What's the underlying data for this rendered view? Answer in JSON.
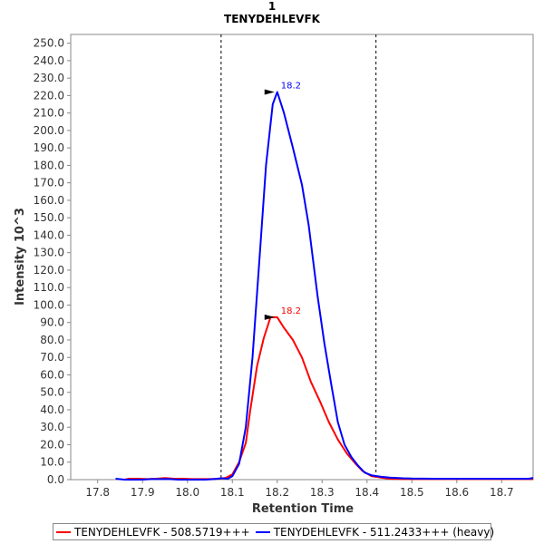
{
  "chart_data": {
    "type": "line",
    "title": "1",
    "subtitle": "TENYDEHLEVFK",
    "xlabel": "Retention Time",
    "ylabel": "Intensity 10^3",
    "xlim": [
      17.74,
      18.77
    ],
    "ylim": [
      0,
      255
    ],
    "x_ticks": [
      "17.8",
      "17.9",
      "18.0",
      "18.1",
      "18.2",
      "18.3",
      "18.4",
      "18.5",
      "18.6",
      "18.7"
    ],
    "y_ticks": [
      "0.0",
      "10.0",
      "20.0",
      "30.0",
      "40.0",
      "50.0",
      "60.0",
      "70.0",
      "80.0",
      "90.0",
      "100.0",
      "110.0",
      "120.0",
      "130.0",
      "140.0",
      "150.0",
      "160.0",
      "170.0",
      "180.0",
      "190.0",
      "200.0",
      "210.0",
      "220.0",
      "230.0",
      "240.0",
      "250.0"
    ],
    "grid": false,
    "legend": "bottom",
    "integration_bounds": [
      18.075,
      18.42
    ],
    "series": [
      {
        "name": "TENYDEHLEVFK - 508.5719+++",
        "color": "#ff0000",
        "peak_label": "18.2",
        "peak": [
          18.2,
          93
        ],
        "x": [
          17.86,
          17.87,
          17.89,
          17.91,
          17.93,
          17.95,
          17.97,
          17.99,
          18.01,
          18.03,
          18.05,
          18.07,
          18.085,
          18.1,
          18.115,
          18.13,
          18.14,
          18.155,
          18.17,
          18.185,
          18.2,
          18.215,
          18.235,
          18.255,
          18.275,
          18.295,
          18.315,
          18.335,
          18.355,
          18.375,
          18.39,
          18.41,
          18.43,
          18.45,
          18.48,
          18.5,
          18.55,
          18.6,
          18.65,
          18.7,
          18.77
        ],
        "y": [
          0,
          0.5,
          0.5,
          0.3,
          0.5,
          0.9,
          0.5,
          0.5,
          0.3,
          0.3,
          0.3,
          0.5,
          1,
          3,
          10,
          21,
          40,
          65,
          81,
          93,
          93,
          87,
          80,
          70,
          56,
          45,
          33,
          23,
          15,
          9,
          5,
          2,
          1.2,
          0.5,
          0.3,
          0.3,
          0.3,
          0.3,
          0.3,
          0.3,
          0.3
        ]
      },
      {
        "name": "TENYDEHLEVFK - 511.2433+++ (heavy)",
        "color": "#0000ff",
        "peak_label": "18.2",
        "peak": [
          18.2,
          222
        ],
        "x": [
          17.84,
          17.86,
          17.88,
          17.9,
          17.92,
          17.94,
          17.96,
          17.98,
          18.0,
          18.02,
          18.04,
          18.06,
          18.075,
          18.09,
          18.1,
          18.115,
          18.13,
          18.145,
          18.16,
          18.175,
          18.19,
          18.2,
          18.215,
          18.235,
          18.255,
          18.27,
          18.29,
          18.305,
          18.32,
          18.335,
          18.35,
          18.365,
          18.38,
          18.395,
          18.41,
          18.43,
          18.45,
          18.48,
          18.5,
          18.55,
          18.6,
          18.65,
          18.7,
          18.76,
          18.77
        ],
        "y": [
          0.5,
          0,
          0,
          0,
          0.3,
          0.3,
          0.3,
          0,
          0,
          0,
          0,
          0.3,
          0.8,
          0.5,
          2,
          9,
          30,
          70,
          125,
          180,
          215,
          222,
          210,
          190,
          169,
          146,
          105,
          78,
          55,
          33,
          20,
          13,
          8,
          4,
          2.5,
          1.7,
          1.2,
          0.8,
          0.6,
          0.5,
          0.5,
          0.5,
          0.5,
          0.5,
          1
        ]
      }
    ]
  }
}
